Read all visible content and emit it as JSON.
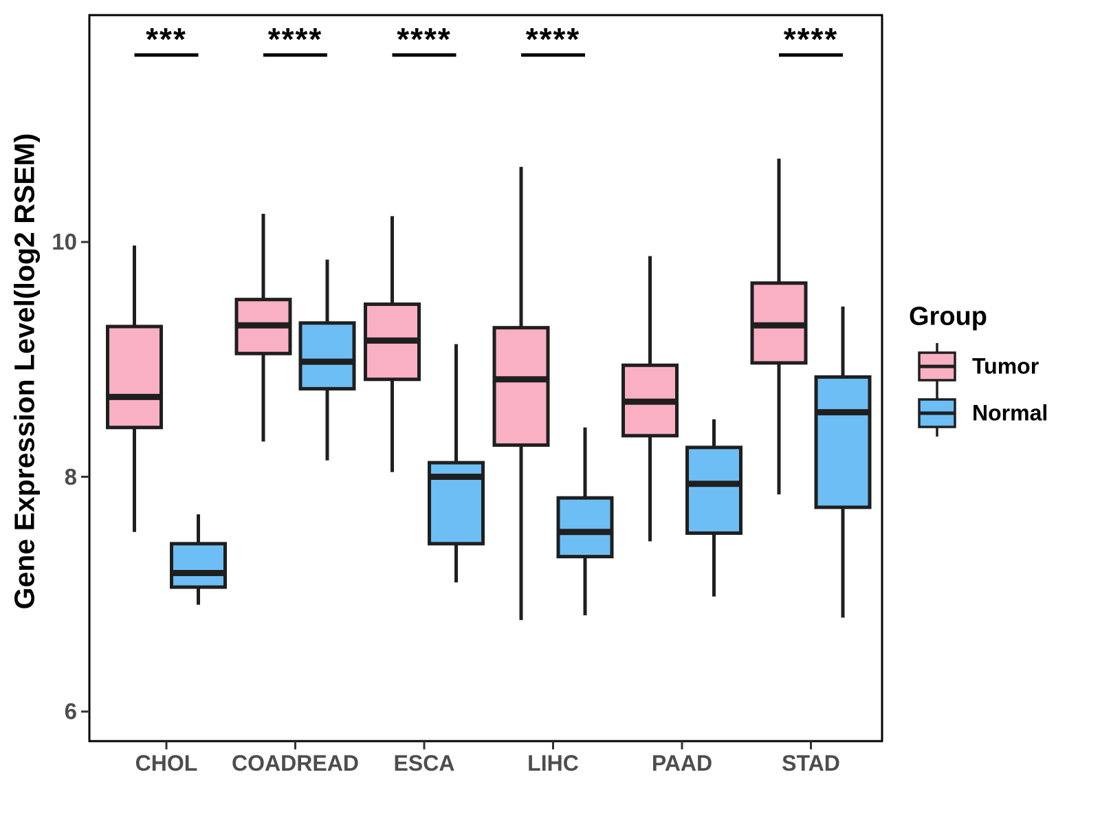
{
  "chart_data": {
    "type": "box",
    "title": "",
    "ylabel": "Gene Expression Level(log2 RSEM)",
    "xlabel": "",
    "categories": [
      "CHOL",
      "COADREAD",
      "ESCA",
      "LIHC",
      "PAAD",
      "STAD"
    ],
    "yticks": {
      "labels": [
        "10",
        "8",
        "6"
      ],
      "values": [
        10,
        8,
        6
      ]
    },
    "ylim": [
      5.75,
      11.95
    ],
    "grid": false,
    "significance": [
      "***",
      "****",
      "****",
      "****",
      "",
      "****"
    ],
    "legend": {
      "title": "Group",
      "position": "right",
      "entries": [
        {
          "label": "Tumor",
          "color": "#FAB0C3"
        },
        {
          "label": "Normal",
          "color": "#6DBEF5"
        }
      ]
    },
    "series": [
      {
        "name": "Tumor",
        "color": "#FAB0C3",
        "boxes": [
          {
            "category": "CHOL",
            "min": 7.53,
            "q1": 8.42,
            "median": 8.68,
            "q3": 9.28,
            "max": 9.97
          },
          {
            "category": "COADREAD",
            "min": 8.3,
            "q1": 9.05,
            "median": 9.29,
            "q3": 9.51,
            "max": 10.24
          },
          {
            "category": "ESCA",
            "min": 8.04,
            "q1": 8.83,
            "median": 9.16,
            "q3": 9.47,
            "max": 10.22
          },
          {
            "category": "LIHC",
            "min": 6.78,
            "q1": 8.27,
            "median": 8.83,
            "q3": 9.27,
            "max": 10.64
          },
          {
            "category": "PAAD",
            "min": 7.45,
            "q1": 8.35,
            "median": 8.64,
            "q3": 8.95,
            "max": 9.88
          },
          {
            "category": "STAD",
            "min": 7.85,
            "q1": 8.97,
            "median": 9.29,
            "q3": 9.65,
            "max": 10.71
          }
        ]
      },
      {
        "name": "Normal",
        "color": "#6DBEF5",
        "boxes": [
          {
            "category": "CHOL",
            "min": 6.91,
            "q1": 7.06,
            "median": 7.18,
            "q3": 7.43,
            "max": 7.68
          },
          {
            "category": "COADREAD",
            "min": 8.14,
            "q1": 8.75,
            "median": 8.98,
            "q3": 9.31,
            "max": 9.85
          },
          {
            "category": "ESCA",
            "min": 7.1,
            "q1": 7.43,
            "median": 8.0,
            "q3": 8.12,
            "max": 9.13
          },
          {
            "category": "LIHC",
            "min": 6.82,
            "q1": 7.32,
            "median": 7.53,
            "q3": 7.82,
            "max": 8.42
          },
          {
            "category": "PAAD",
            "min": 6.98,
            "q1": 7.52,
            "median": 7.94,
            "q3": 8.25,
            "max": 8.49
          },
          {
            "category": "STAD",
            "min": 6.8,
            "q1": 7.74,
            "median": 8.55,
            "q3": 8.85,
            "max": 9.45
          }
        ]
      }
    ]
  },
  "style": {
    "box_border": "#1f1f1f",
    "panel_border": "#000000",
    "tick_color": "#333333",
    "background": "#ffffff"
  }
}
